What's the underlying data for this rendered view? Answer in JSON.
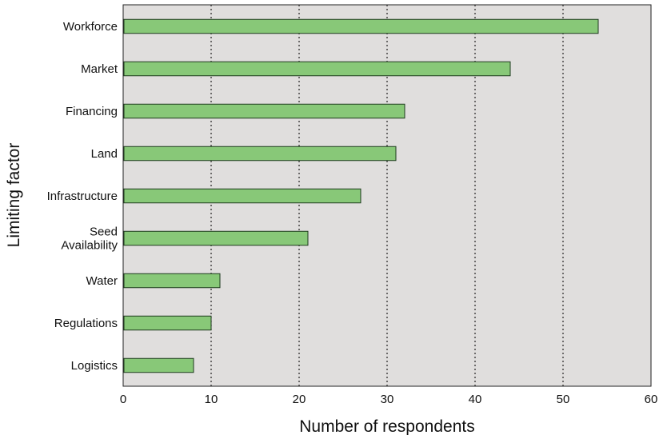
{
  "chart_data": {
    "type": "bar",
    "orientation": "horizontal",
    "categories": [
      [
        "Workforce"
      ],
      [
        "Market"
      ],
      [
        "Financing"
      ],
      [
        "Land"
      ],
      [
        "Infrastructure"
      ],
      [
        "Seed",
        "Availability"
      ],
      [
        "Water"
      ],
      [
        "Regulations"
      ],
      [
        "Logistics"
      ]
    ],
    "values": [
      54,
      44,
      32,
      31,
      27,
      21,
      11,
      10,
      8
    ],
    "title": "",
    "xlabel": "Number of respondents",
    "ylabel": "Limiting factor",
    "xlim": [
      0,
      60
    ],
    "xticks": [
      0,
      10,
      20,
      30,
      40,
      50,
      60
    ],
    "grid": "vertical-dotted",
    "legend": "none",
    "colors": {
      "bar_fill": "#88c878",
      "bar_stroke": "#1e3a1e",
      "plot_background": "#e0dedd",
      "grid": "#222222"
    }
  }
}
